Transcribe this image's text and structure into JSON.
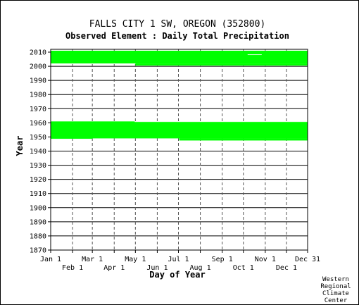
{
  "chart_data": {
    "type": "heatmap",
    "title": "FALLS CITY 1 SW, OREGON   (352800)",
    "subtitle": "Observed Element : Daily Total Precipitation",
    "xlabel": "Day of Year",
    "ylabel": "Year",
    "ylim": [
      1870,
      2012
    ],
    "xlim": [
      1,
      365
    ],
    "y_ticks": [
      1870,
      1880,
      1890,
      1900,
      1910,
      1920,
      1930,
      1940,
      1950,
      1960,
      1970,
      1980,
      1990,
      2000,
      2010
    ],
    "x_ticks_top": [
      {
        "label": "Jan 1",
        "day": 1
      },
      {
        "label": "Mar 1",
        "day": 60
      },
      {
        "label": "May 1",
        "day": 121
      },
      {
        "label": "Jul 1",
        "day": 182
      },
      {
        "label": "Sep 1",
        "day": 244
      },
      {
        "label": "Nov 1",
        "day": 305
      },
      {
        "label": "Dec 31",
        "day": 365
      }
    ],
    "x_ticks_bottom": [
      {
        "label": "Feb 1",
        "day": 32
      },
      {
        "label": "Apr 1",
        "day": 91
      },
      {
        "label": "Jun 1",
        "day": 152
      },
      {
        "label": "Aug 1",
        "day": 213
      },
      {
        "label": "Oct 1",
        "day": 274
      },
      {
        "label": "Dec 1",
        "day": 335
      }
    ],
    "grid": true,
    "series": [
      {
        "color": "#00ff00",
        "blocks": [
          {
            "day_start": 1,
            "day_end": 365,
            "year_start": 1949,
            "year_end": 1961
          },
          {
            "day_start": 1,
            "day_end": 60,
            "year_start": 1948.7,
            "year_end": 1949
          },
          {
            "day_start": 183,
            "day_end": 365,
            "year_start": 1947.5,
            "year_end": 1949
          },
          {
            "day_start": 1,
            "day_end": 365,
            "year_start": 2002,
            "year_end": 2011
          },
          {
            "day_start": 121,
            "day_end": 365,
            "year_start": 2000.5,
            "year_end": 2002
          }
        ],
        "gaps": [
          {
            "day_start": 280,
            "day_end": 300,
            "year_start": 2008,
            "year_end": 2008.4
          },
          {
            "day_start": 120,
            "day_end": 365,
            "year_start": 1960.6,
            "year_end": 1961
          }
        ]
      }
    ]
  },
  "credit": [
    "Western",
    "Regional",
    "Climate",
    "Center"
  ]
}
